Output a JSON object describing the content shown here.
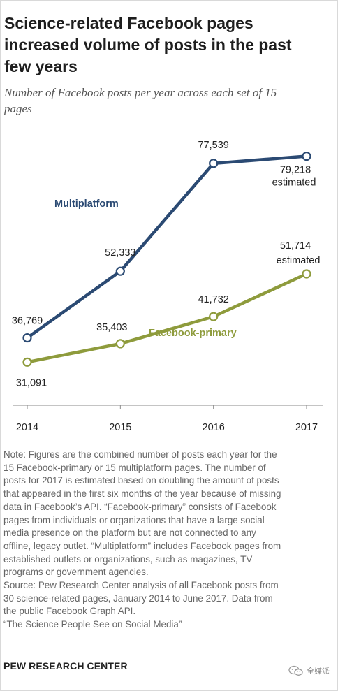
{
  "title": [
    "Science-related Facebook pages",
    "increased volume of posts in the past",
    "few years"
  ],
  "subtitle": [
    "Number of Facebook posts per year across each set of 15",
    "pages"
  ],
  "chart_data": {
    "type": "line",
    "categories": [
      "2014",
      "2015",
      "2016",
      "2017"
    ],
    "series": [
      {
        "name": "Multiplatform",
        "values": [
          36769,
          52333,
          77539,
          79218
        ],
        "labels": [
          "36,769",
          "52,333",
          "77,539",
          "79,218"
        ],
        "color": "#2b4a73"
      },
      {
        "name": "Facebook-primary",
        "values": [
          31091,
          35403,
          41732,
          51714
        ],
        "labels": [
          "31,091",
          "35,403",
          "41,732",
          "51,714"
        ],
        "color": "#8e9b3c"
      }
    ],
    "annotations": [
      "estimated",
      "estimated"
    ],
    "ylim": [
      22000,
      86000
    ],
    "grid": false,
    "legend": "inline labels"
  },
  "note": [
    "Note: Figures are the combined number of posts each year for the",
    "15 Facebook-primary or 15 multiplatform pages. The number of",
    "posts for 2017  is estimated based on doubling the amount of posts",
    "that appeared in the first six months of the year because of missing",
    "data in Facebook’s API. “Facebook-primary” consists of Facebook",
    "pages from individuals or organizations that have a large social",
    "media presence on the platform but are not connected to any",
    "offline, legacy outlet. “Multiplatform” includes Facebook pages from",
    "established outlets or organizations, such as magazines, TV",
    "programs or government agencies.",
    "Source: Pew Research Center analysis of all Facebook posts from",
    "30 science-related pages, January 2014 to June 2017.  Data from",
    "the public Facebook Graph API.",
    "“The Science People See on Social Media”"
  ],
  "org": "PEW RESEARCH CENTER",
  "watermark": "全媒派",
  "watermark_icon": "wechat-icon"
}
